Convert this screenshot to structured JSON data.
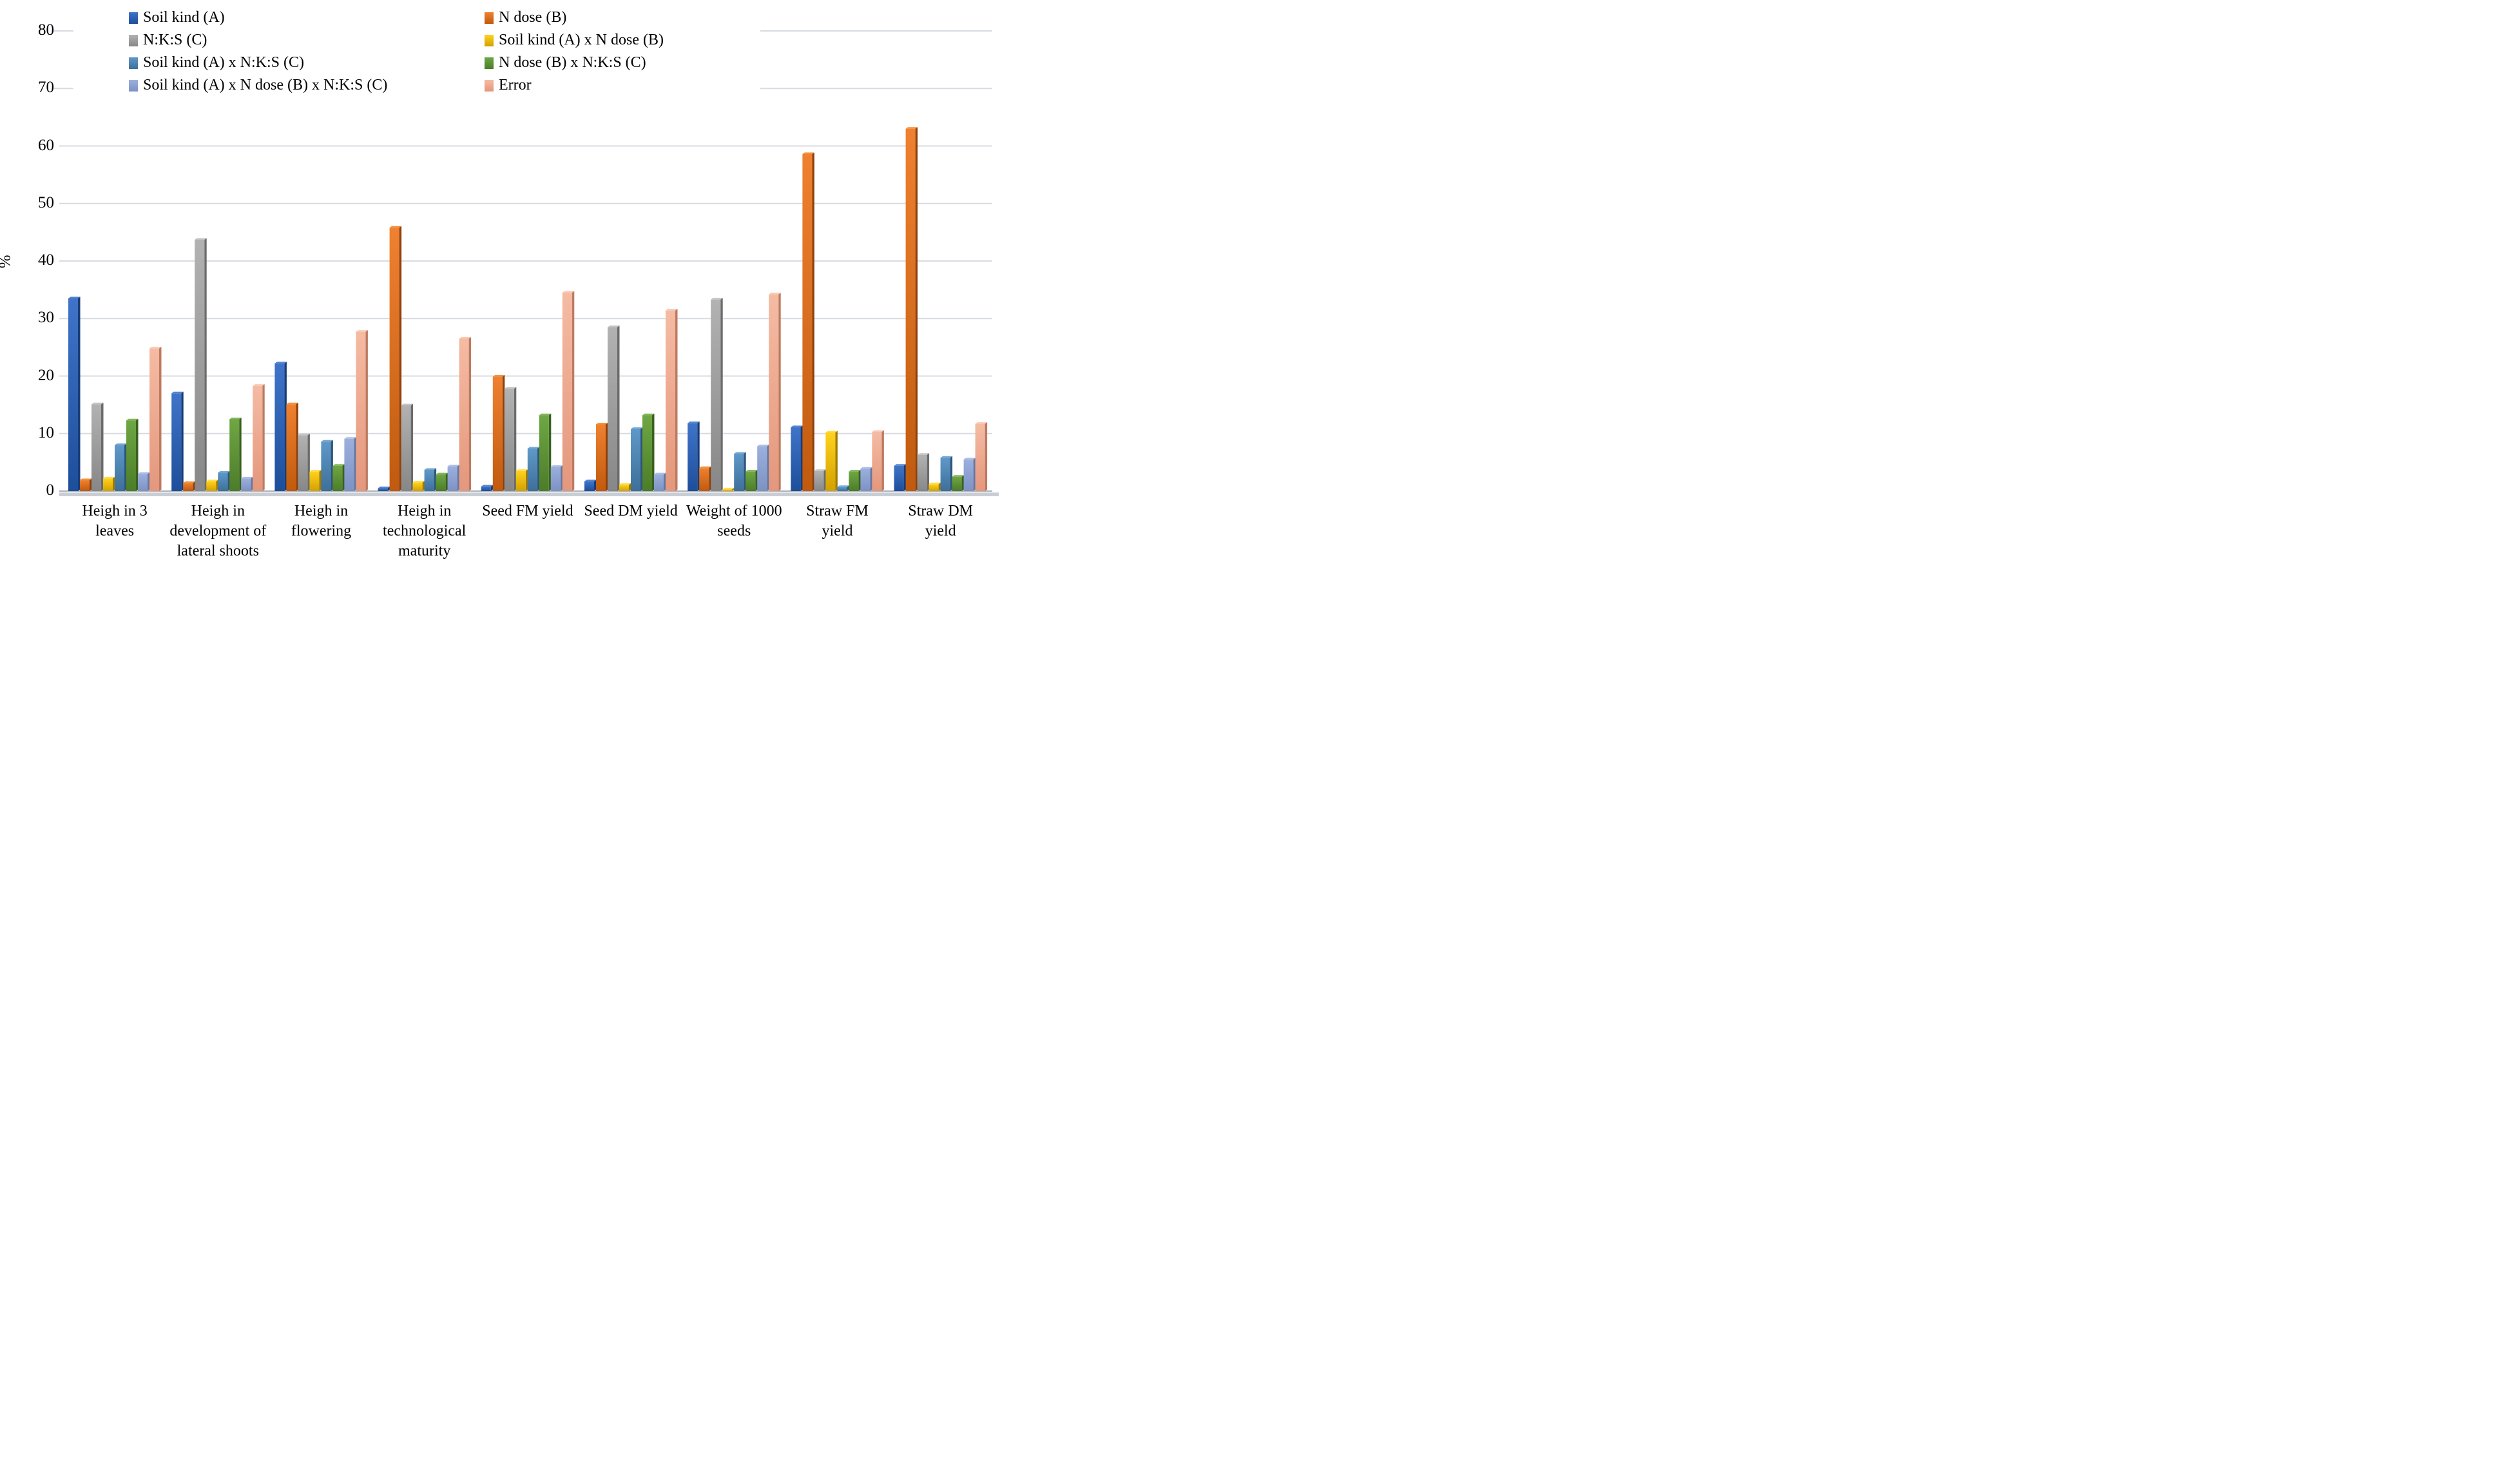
{
  "chart_data": {
    "type": "bar",
    "title": "",
    "ylabel": "%",
    "ylim": [
      0,
      80
    ],
    "yticks": [
      0,
      10,
      20,
      30,
      40,
      50,
      60,
      70,
      80
    ],
    "grid": true,
    "legend_position": "top-left, two columns",
    "categories": [
      "Heigh in 3 leaves",
      "Heigh in development of lateral shoots",
      "Heigh in flowering",
      "Heigh in technological maturity",
      "Seed FM yield",
      "Seed DM yield",
      "Weight of 1000 seeds",
      "Straw FM yield",
      "Straw DM yield"
    ],
    "series": [
      {
        "name": "Soil kind (A)",
        "color": "#2e62b8",
        "color_light": "#3f74c9",
        "color_dark": "#1d4e9a",
        "color_side": "#173c78",
        "color_top": "#5584cf",
        "values": [
          33.5,
          17.0,
          22.2,
          0.5,
          0.8,
          1.7,
          11.8,
          11.1,
          4.4
        ]
      },
      {
        "name": "N dose (B)",
        "color": "#e06c15",
        "color_light": "#ef8130",
        "color_dark": "#c05a0e",
        "color_side": "#8f3f0a",
        "color_top": "#f1933f",
        "values": [
          1.9,
          1.4,
          15.1,
          45.8,
          19.9,
          11.6,
          4.0,
          58.6,
          63.0
        ]
      },
      {
        "name": "N:K:S (C)",
        "color": "#a0a0a0",
        "color_light": "#b2b2b2",
        "color_dark": "#878787",
        "color_side": "#6b6b6b",
        "color_top": "#c4c4c4",
        "values": [
          15.1,
          43.7,
          9.7,
          14.9,
          17.8,
          28.5,
          33.3,
          3.5,
          6.3
        ]
      },
      {
        "name": "Soil kind (A) x N dose (B)",
        "color": "#eab600",
        "color_light": "#ffd21d",
        "color_dark": "#d2a100",
        "color_side": "#a07a00",
        "color_top": "#ffdc4e",
        "values": [
          2.2,
          1.7,
          3.4,
          1.5,
          3.5,
          1.1,
          0.3,
          10.2,
          1.2
        ]
      },
      {
        "name": "Soil kind (A) x N:K:S (C)",
        "color": "#4e87b8",
        "color_light": "#5f98c9",
        "color_dark": "#3d7099",
        "color_side": "#2f567a",
        "color_top": "#74a9d4",
        "values": [
          8.0,
          3.2,
          8.6,
          3.7,
          7.4,
          10.8,
          6.5,
          0.7,
          5.8
        ]
      },
      {
        "name": "N dose (B) x N:K:S (C)",
        "color": "#5e9637",
        "color_light": "#6ea743",
        "color_dark": "#4c7c29",
        "color_side": "#3a611e",
        "color_top": "#82b659",
        "values": [
          12.3,
          12.5,
          4.4,
          2.9,
          13.2,
          13.2,
          3.4,
          3.4,
          2.5
        ]
      },
      {
        "name": "Soil kind (A) x N dose (B) x N:K:S (C)",
        "color": "#8fa4d6",
        "color_light": "#9cb0de",
        "color_dark": "#7d92c4",
        "color_side": "#65779f",
        "color_top": "#aebee8",
        "values": [
          3.0,
          2.2,
          9.1,
          4.3,
          4.2,
          2.9,
          7.8,
          3.9,
          5.5
        ]
      },
      {
        "name": "Error",
        "color": "#efab90",
        "color_light": "#f5bba3",
        "color_dark": "#e4977c",
        "color_side": "#bd7a60",
        "color_top": "#f8c9b4",
        "values": [
          24.8,
          18.3,
          27.7,
          26.5,
          34.5,
          31.4,
          34.2,
          10.3,
          11.7
        ]
      }
    ],
    "legend_columns": [
      [
        0,
        2,
        4,
        6
      ],
      [
        1,
        3,
        5,
        7
      ]
    ],
    "colors_misc": {
      "gridline": "#d7dbe2",
      "axis_line": "#aeb2ba",
      "floor": "#c9cdd4",
      "floor_light": "#e3e6ea"
    }
  }
}
